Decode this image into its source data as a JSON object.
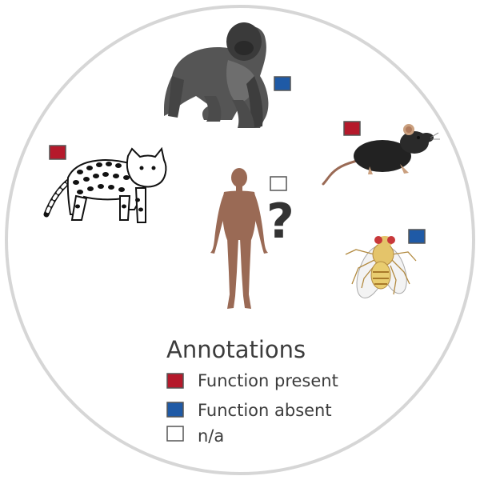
{
  "colors": {
    "present": "#b5192b",
    "absent": "#1f5aa6",
    "na": "#ffffff",
    "swatch_border": "#555555",
    "circle": "#d6d6d6",
    "human": "#9a6a55",
    "text": "#3c3c3c"
  },
  "question_mark": "?",
  "organisms": [
    {
      "name": "gorilla",
      "annotation": "absent"
    },
    {
      "name": "mouse",
      "annotation": "present"
    },
    {
      "name": "cat",
      "annotation": "present"
    },
    {
      "name": "fly",
      "annotation": "absent"
    },
    {
      "name": "human",
      "annotation": "na"
    }
  ],
  "legend": {
    "title": "Annotations",
    "items": [
      {
        "label": "Function present",
        "annotation": "present"
      },
      {
        "label": "Function absent",
        "annotation": "absent"
      },
      {
        "label": "n/a",
        "annotation": "na"
      }
    ]
  }
}
